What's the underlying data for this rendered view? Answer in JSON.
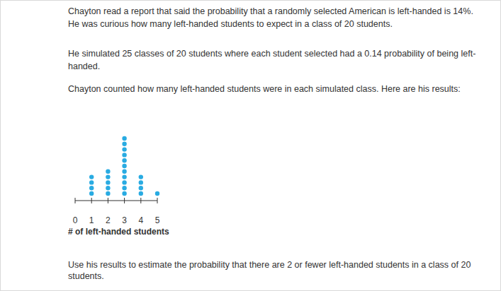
{
  "paragraphs": [
    [
      "Chayton read a report that said the probability that a randomly selected American is left-handed is 14%.",
      "He was curious how many left-handed students to expect in a class of 20 students."
    ],
    [
      "He simulated 25 classes of 20 students where each student selected had a 0.14 probability of being left-",
      "handed."
    ],
    [
      "Chayton counted how many left-handed students were in each simulated class. Here are his results:"
    ]
  ],
  "chart_data": {
    "type": "dot",
    "x_label": "# of left-handed students",
    "x": [
      0,
      1,
      2,
      3,
      4,
      5
    ],
    "values": [
      0,
      4,
      5,
      11,
      4,
      1
    ],
    "color": "#29abe2",
    "xlim": [
      0,
      5
    ],
    "xticks": [
      0,
      1,
      2,
      3,
      4,
      5
    ]
  },
  "question": [
    "Use his results to estimate the probability that there are 2 or fewer left-handed students in a class of 20",
    "students."
  ]
}
